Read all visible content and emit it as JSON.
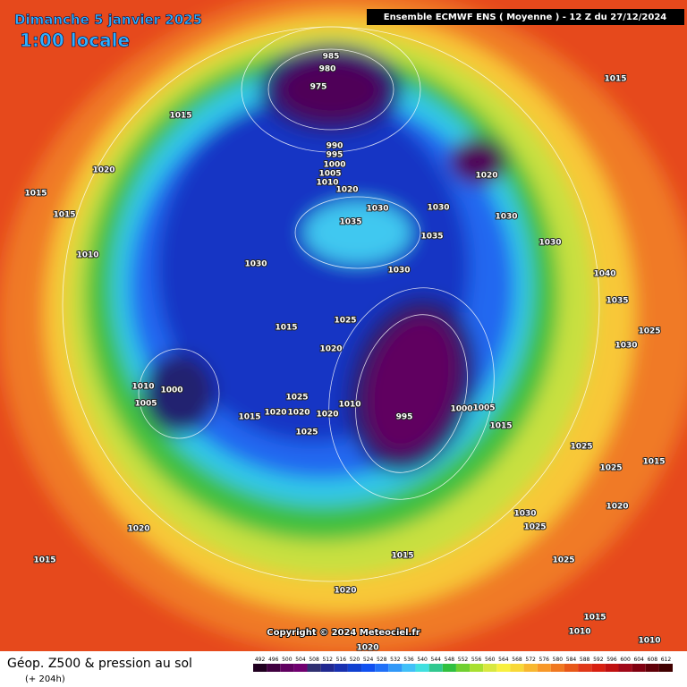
{
  "header": {
    "date": "Dimanche 5 janvier 2025",
    "time": "1:00 locale",
    "model": "Ensemble ECMWF ENS  ( Moyenne )  - 12 Z du 27/12/2024"
  },
  "footer": {
    "title": "Géop. Z500 & pression au sol",
    "lead": "(+ 204h)",
    "copyright": "Copyright © 2024 Meteociel.fr"
  },
  "isobar_labels": [
    "985",
    "980",
    "975",
    "990",
    "995",
    "1000",
    "1005",
    "1010",
    "1020",
    "1015",
    "1020",
    "1015",
    "1015",
    "1010",
    "1020",
    "1030",
    "1035",
    "1030",
    "1035",
    "1030",
    "1030",
    "1030",
    "1025",
    "1015",
    "1020",
    "1000",
    "1010",
    "1005",
    "1015",
    "1020",
    "1025",
    "1020",
    "1025",
    "1020",
    "1010",
    "995",
    "1000",
    "1005",
    "1015",
    "1030",
    "1040",
    "1035",
    "1025",
    "1030",
    "1025",
    "1025",
    "1015",
    "1020",
    "1025",
    "1030",
    "1025",
    "1020",
    "1015",
    "1015",
    "1020",
    "1015",
    "1010",
    "1010",
    "1020",
    "1015"
  ],
  "colorbar": {
    "labels": [
      492,
      496,
      500,
      504,
      508,
      512,
      516,
      520,
      524,
      528,
      532,
      536,
      540,
      544,
      548,
      552,
      556,
      560,
      564,
      568,
      572,
      576,
      580,
      584,
      588,
      592,
      596,
      600,
      604,
      608,
      612
    ],
    "colors": [
      "#200020",
      "#400040",
      "#600060",
      "#700070",
      "#303070",
      "#202890",
      "#1830b0",
      "#1040d0",
      "#1050f0",
      "#2070f8",
      "#3098f8",
      "#40c0f8",
      "#40e0e0",
      "#30c890",
      "#30c040",
      "#70d030",
      "#a8e030",
      "#d8e840",
      "#f8f040",
      "#f8d838",
      "#f8b830",
      "#f89828",
      "#f07820",
      "#e85818",
      "#e03818",
      "#d82010",
      "#c01010",
      "#a00818",
      "#800010",
      "#600008",
      "#400000"
    ]
  }
}
